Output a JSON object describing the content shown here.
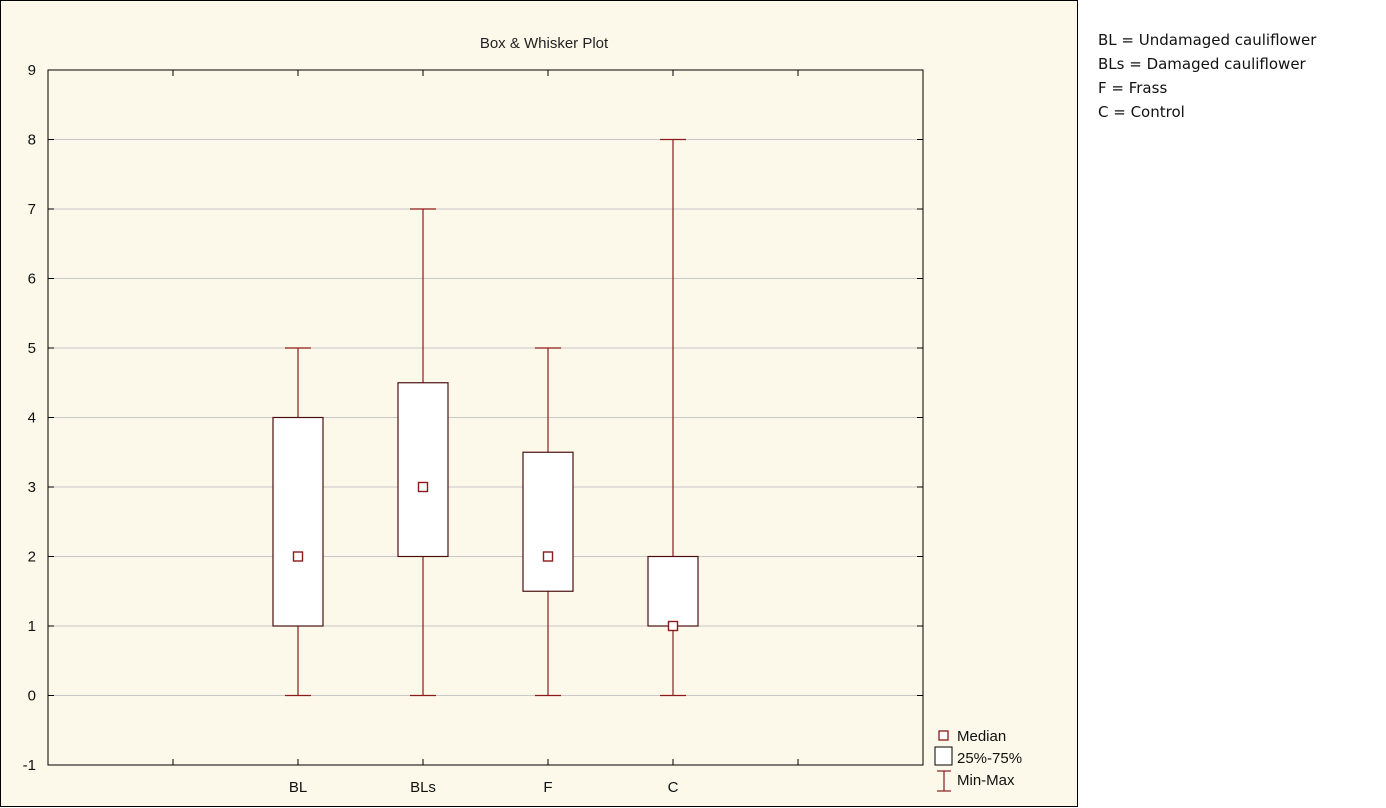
{
  "notes": [
    "BL = Undamaged cauliflower",
    "BLs = Damaged cauliflower",
    "F = Frass",
    "C = Control"
  ],
  "chart_data": {
    "type": "box",
    "title": "Box & Whisker Plot",
    "xlabel": "",
    "ylabel": "",
    "categories": [
      "BL",
      "BLs",
      "F",
      "C"
    ],
    "ylim": [
      -1,
      9
    ],
    "yticks": [
      -1,
      0,
      1,
      2,
      3,
      4,
      5,
      6,
      7,
      8,
      9
    ],
    "grid": "horizontal",
    "boxes": [
      {
        "category": "BL",
        "min": 0,
        "q1": 1,
        "median": 2,
        "q3": 4,
        "max": 5
      },
      {
        "category": "BLs",
        "min": 0,
        "q1": 2,
        "median": 3,
        "q3": 4.5,
        "max": 7
      },
      {
        "category": "F",
        "min": 0,
        "q1": 1.5,
        "median": 2,
        "q3": 3.5,
        "max": 5
      },
      {
        "category": "C",
        "min": 0,
        "q1": 1,
        "median": 1,
        "q3": 2,
        "max": 8
      }
    ],
    "legend": {
      "placement": "bottom-right",
      "items": [
        "Median",
        "25%-75%",
        "Min-Max"
      ]
    },
    "colors": {
      "series": "#8b1a1a",
      "box_edge": "#4a1010",
      "background": "#fdf9ea",
      "gridline": "#c8c8c8"
    }
  }
}
